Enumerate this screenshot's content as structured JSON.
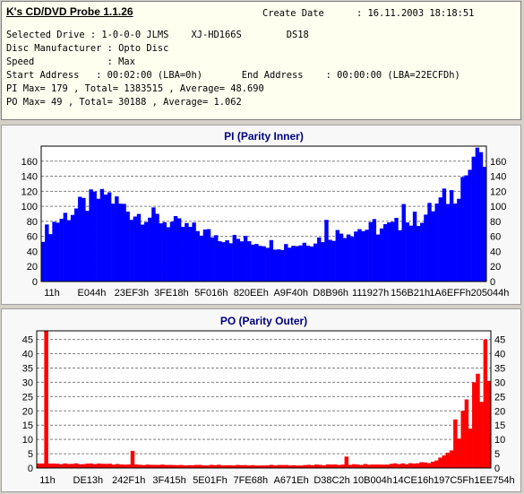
{
  "app_title": "K's CD/DVD Probe 1.1.26",
  "info": {
    "create_date_label": "Create Date",
    "create_date_value": ": 16.11.2003 18:18:51",
    "line1": "Selected Drive : 1-0-0-0 JLMS    XJ-HD166S        DS18",
    "line2": "Disc Manufacturer : Opto Disc",
    "line3": "Speed             : Max",
    "line4": "Start Address   : 00:02:00 (LBA=0h)       End Address    : 00:00:00 (LBA=22ECFDh)",
    "line5": "PI Max= 179 , Total= 1383515 , Average= 48.690",
    "line6": "PO Max= 49 , Total= 30188 , Average= 1.062"
  },
  "chart_data": [
    {
      "type": "bar",
      "title": "PI (Parity Inner)",
      "color": "#0000ff",
      "title_color": "#000080",
      "ylim": [
        0,
        180
      ],
      "yticks": [
        0,
        20,
        40,
        60,
        80,
        100,
        120,
        140,
        160
      ],
      "xticks": [
        "11h",
        "E044h",
        "23EF3h",
        "3FE18h",
        "5F016h",
        "820EEh",
        "A9F40h",
        "D8B96h",
        "111927h",
        "156B21h",
        "1A6EFFh",
        "205044h"
      ],
      "grid": true,
      "profile": [
        [
          0,
          62
        ],
        [
          3,
          78
        ],
        [
          6,
          88
        ],
        [
          9,
          96
        ],
        [
          12,
          104
        ],
        [
          15,
          112
        ],
        [
          17,
          118
        ],
        [
          20,
          105
        ],
        [
          24,
          92
        ],
        [
          30,
          86
        ],
        [
          36,
          76
        ],
        [
          42,
          68
        ],
        [
          48,
          60
        ],
        [
          54,
          55
        ],
        [
          60,
          52
        ],
        [
          65,
          48
        ],
        [
          70,
          50
        ],
        [
          75,
          57
        ],
        [
          80,
          64
        ],
        [
          86,
          70
        ],
        [
          92,
          70
        ],
        [
          96,
          75
        ],
        [
          100,
          80
        ],
        [
          104,
          89
        ],
        [
          106,
          98
        ],
        [
          108,
          105
        ],
        [
          110,
          113
        ],
        [
          112,
          120
        ],
        [
          114,
          136
        ],
        [
          116,
          150
        ],
        [
          118,
          160
        ],
        [
          120,
          164
        ]
      ],
      "spikes": [
        [
          118,
          178
        ],
        [
          119,
          172
        ],
        [
          117,
          166
        ],
        [
          16,
          123
        ],
        [
          77,
          82
        ],
        [
          90,
          83
        ],
        [
          98,
          103
        ],
        [
          114,
          139
        ]
      ]
    },
    {
      "type": "bar",
      "title": "PO (Parity Outer)",
      "color": "#ff0000",
      "title_color": "#000080",
      "ylim": [
        0,
        48
      ],
      "yticks": [
        0,
        5,
        10,
        15,
        20,
        25,
        30,
        35,
        40,
        45
      ],
      "xticks": [
        "11h",
        "DE13h",
        "242F1h",
        "3F415h",
        "5E01Fh",
        "7FE68h",
        "A671Eh",
        "D38C2h",
        "10B004h",
        "14CE16h",
        "197C5Fh",
        "1EE754h"
      ],
      "grid": true,
      "profile": [
        [
          0,
          1.5
        ],
        [
          10,
          1.5
        ],
        [
          40,
          1.0
        ],
        [
          70,
          1.0
        ],
        [
          90,
          1.3
        ],
        [
          98,
          1.5
        ],
        [
          104,
          2.0
        ],
        [
          106,
          3
        ],
        [
          108,
          4
        ],
        [
          110,
          6
        ],
        [
          112,
          9
        ],
        [
          114,
          12
        ],
        [
          116,
          16
        ],
        [
          118,
          22
        ],
        [
          120,
          27
        ]
      ],
      "spikes": [
        [
          2,
          49
        ],
        [
          119,
          45
        ],
        [
          117,
          33
        ],
        [
          116,
          30
        ],
        [
          114,
          24
        ],
        [
          113,
          20
        ],
        [
          111,
          17
        ],
        [
          25,
          6
        ],
        [
          82,
          4
        ]
      ]
    }
  ]
}
